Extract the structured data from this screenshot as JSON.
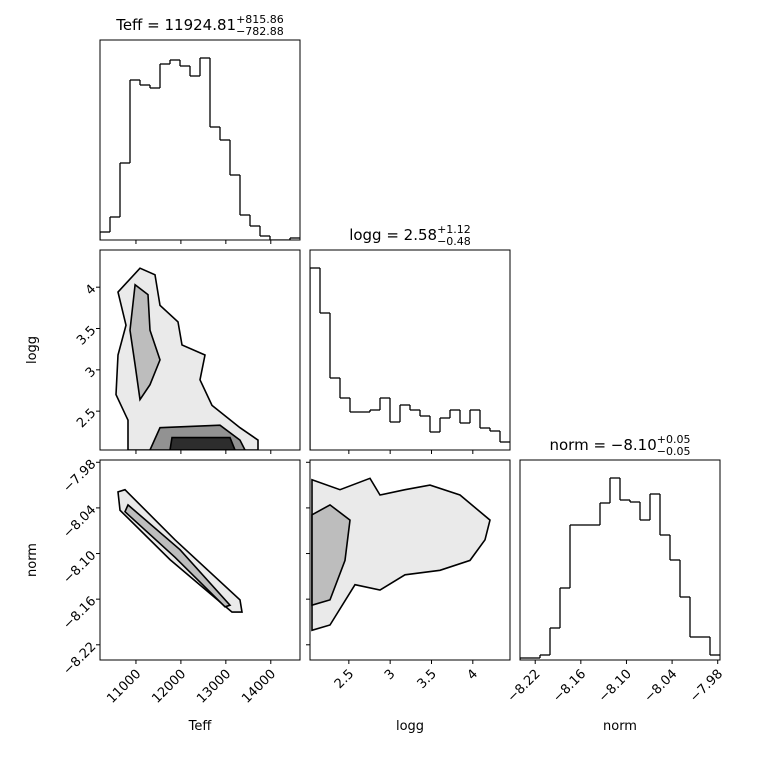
{
  "chart_data": {
    "type": "corner",
    "color": "#000000",
    "hist_ylim": [
      0,
      200
    ],
    "params": [
      {
        "name": "Teff",
        "title": "Teff = 11924.81",
        "title_sup": "+815.86",
        "title_sub": "−782.88",
        "lim": [
          10200,
          14650
        ],
        "ticks": [
          11000,
          12000,
          13000,
          14000
        ],
        "bins": [
          10200,
          10422.5,
          10645,
          10867.5,
          11090,
          11312.5,
          11535,
          11757.5,
          11980,
          12202.5,
          12425,
          12647.5,
          12870,
          13092.5,
          13315,
          13537.5,
          13760,
          13982.5,
          14205,
          14427.5,
          14650
        ],
        "counts": [
          8,
          23,
          77,
          160,
          155,
          152,
          176,
          180,
          174,
          164,
          182,
          113,
          100,
          65,
          25,
          14,
          4,
          0,
          0,
          2
        ]
      },
      {
        "name": "logg",
        "title": "logg = 2.58",
        "title_sup": "+1.12",
        "title_sub": "−0.48",
        "lim": [
          2.03,
          4.45
        ],
        "ticks": [
          2.5,
          3.0,
          3.5,
          4.0
        ],
        "bins": [
          2.03,
          2.151,
          2.272,
          2.393,
          2.514,
          2.635,
          2.756,
          2.877,
          2.998,
          3.119,
          3.24,
          3.361,
          3.482,
          3.603,
          3.724,
          3.845,
          3.966,
          4.087,
          4.208,
          4.329,
          4.45
        ],
        "counts": [
          182,
          137,
          72,
          52,
          38,
          38,
          40,
          52,
          28,
          45,
          40,
          34,
          18,
          32,
          40,
          27,
          40,
          22,
          19,
          8
        ]
      },
      {
        "name": "norm",
        "title": "norm = −8.10",
        "title_sup": "+0.05",
        "title_sub": "−0.05",
        "lim": [
          -8.24,
          -7.977
        ],
        "ticks": [
          {
            "value": -8.22,
            "label": "−8.22"
          },
          {
            "value": -8.16,
            "label": "−8.16"
          },
          {
            "value": -8.1,
            "label": "−8.10"
          },
          {
            "value": -8.04,
            "label": "−8.04"
          },
          {
            "value": -7.98,
            "label": "−7.98"
          }
        ],
        "bins": [
          -8.24,
          -8.22685,
          -8.2137,
          -8.20055,
          -8.1874,
          -8.17425,
          -8.1611,
          -8.14795,
          -8.1348,
          -8.12165,
          -8.1085,
          -8.09535,
          -8.0822,
          -8.06905,
          -8.0559,
          -8.04275,
          -8.0296,
          -8.01645,
          -8.0033,
          -7.99015,
          -7.977
        ],
        "counts": [
          2,
          2,
          5,
          32,
          72,
          135,
          135,
          135,
          157,
          182,
          160,
          158,
          140,
          166,
          125,
          100,
          63,
          23,
          23,
          5
        ]
      }
    ],
    "pairs": [
      {
        "x": 0,
        "y": 1,
        "contours": [
          {
            "x": [
              10600,
              11090,
              11424,
              11535,
              11936,
              12025,
              12536,
              12425,
              12692,
              13315,
              13716,
              13716,
              10823,
              10823,
              10556,
              10600,
              10779
            ],
            "y": [
              3.94,
              4.23,
              4.15,
              3.78,
              3.58,
              3.3,
              3.18,
              2.88,
              2.57,
              2.3,
              2.15,
              2.03,
              2.03,
              2.39,
              2.7,
              3.18,
              3.54
            ]
          },
          {
            "x": [
              10980,
              11268,
              11313,
              11535,
              11313,
              11090,
              10980,
              10868
            ],
            "y": [
              4.03,
              3.91,
              3.48,
              3.12,
              2.82,
              2.64,
              3.06,
              3.48
            ]
          },
          {
            "x": [
              11313,
              11535,
              12870,
              13315,
              13426
            ],
            "y": [
              2.03,
              2.3,
              2.33,
              2.15,
              2.03
            ]
          },
          {
            "x": [
              11758,
              11802,
              13092,
              13204
            ],
            "y": [
              2.03,
              2.18,
              2.18,
              2.03
            ]
          }
        ]
      },
      {
        "x": 0,
        "y": 2,
        "contours": [
          {
            "x": [
              10600,
              10756,
              11869,
              13315,
              13360,
              13137,
              11758,
              10645
            ],
            "y": [
              -8.019,
              -8.016,
              -8.082,
              -8.161,
              -8.177,
              -8.177,
              -8.108,
              -8.043
            ]
          },
          {
            "x": [
              10823,
              11980,
              13092,
              12981,
              11869,
              10756
            ],
            "y": [
              -8.036,
              -8.095,
              -8.168,
              -8.17,
              -8.105,
              -8.045
            ]
          }
        ]
      },
      {
        "x": 1,
        "y": 2,
        "contours": [
          {
            "x": [
              2.054,
              2.393,
              2.756,
              2.877,
              3.18,
              3.482,
              3.845,
              4.208,
              4.148,
              3.966,
              3.603,
              3.18,
              2.877,
              2.575,
              2.272,
              2.054
            ],
            "y": [
              -8.003,
              -8.016,
              -8.001,
              -8.023,
              -8.016,
              -8.01,
              -8.023,
              -8.056,
              -8.082,
              -8.109,
              -8.122,
              -8.128,
              -8.148,
              -8.141,
              -8.194,
              -8.201
            ]
          },
          {
            "x": [
              2.054,
              2.272,
              2.514,
              2.454,
              2.272,
              2.054
            ],
            "y": [
              -8.049,
              -8.036,
              -8.056,
              -8.109,
              -8.161,
              -8.168
            ]
          }
        ]
      }
    ]
  }
}
